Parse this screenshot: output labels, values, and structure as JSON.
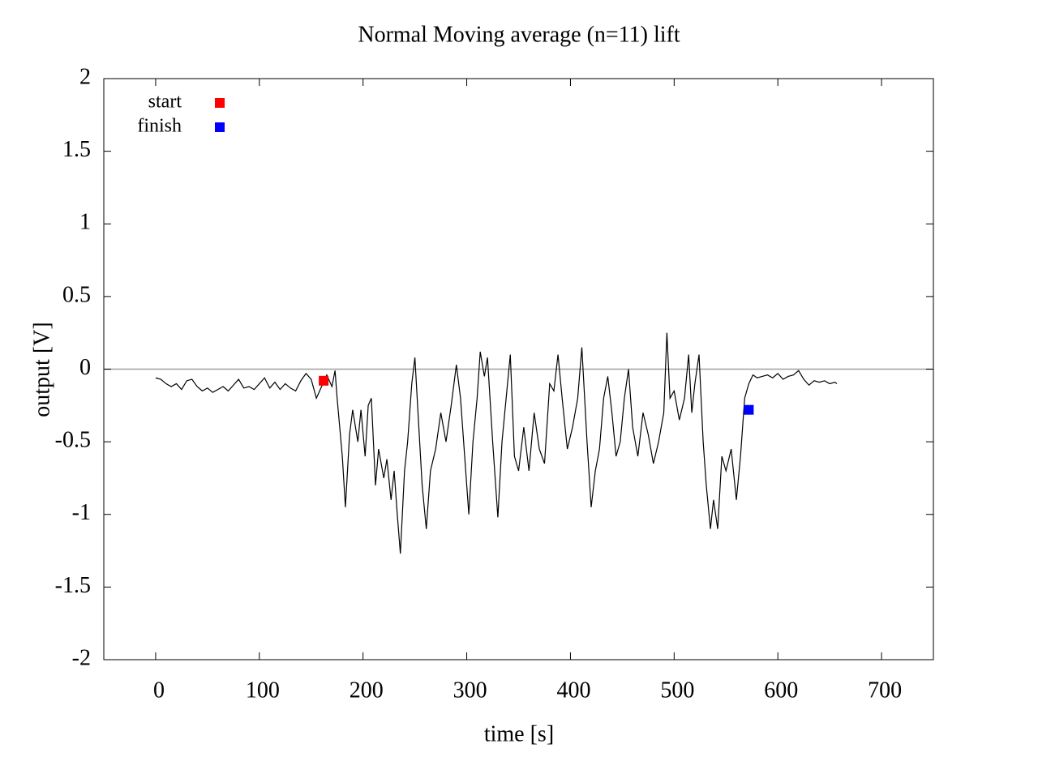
{
  "chart_data": {
    "type": "line",
    "title": "Normal  Moving average (n=11) lift",
    "x_label": "time [s]",
    "y_label": "output [V]",
    "xlim": [
      -50,
      750
    ],
    "ylim": [
      -2,
      2
    ],
    "xticks": [
      0,
      100,
      200,
      300,
      400,
      500,
      600,
      700
    ],
    "yticks": [
      -2,
      -1.5,
      -1,
      -0.5,
      0,
      0.5,
      1,
      1.5,
      2
    ],
    "zeroaxis": true,
    "series": [
      {
        "color": "#000000",
        "x": [
          0,
          5,
          10,
          15,
          20,
          25,
          30,
          35,
          40,
          45,
          50,
          55,
          60,
          65,
          70,
          75,
          80,
          85,
          90,
          95,
          100,
          105,
          110,
          115,
          120,
          125,
          130,
          135,
          140,
          145,
          150,
          155,
          160,
          165,
          170,
          173,
          175,
          180,
          183,
          187,
          190,
          195,
          198,
          202,
          205,
          208,
          212,
          215,
          220,
          223,
          227,
          230,
          233,
          236,
          240,
          243,
          247,
          250,
          253,
          257,
          261,
          265,
          270,
          275,
          280,
          285,
          290,
          294,
          298,
          302,
          306,
          310,
          313,
          317,
          320,
          325,
          330,
          334,
          338,
          342,
          346,
          350,
          355,
          360,
          365,
          370,
          375,
          380,
          384,
          388,
          392,
          397,
          402,
          407,
          411,
          416,
          420,
          424,
          428,
          432,
          436,
          440,
          444,
          448,
          452,
          456,
          460,
          465,
          470,
          475,
          480,
          485,
          490,
          493,
          496,
          500,
          505,
          510,
          514,
          517,
          520,
          524,
          528,
          531,
          535,
          538,
          542,
          546,
          550,
          555,
          560,
          564,
          568,
          572,
          576,
          580,
          585,
          590,
          595,
          600,
          605,
          610,
          615,
          620,
          625,
          630,
          635,
          640,
          645,
          650,
          655,
          657
        ],
        "values": [
          -0.06,
          -0.07,
          -0.1,
          -0.12,
          -0.1,
          -0.14,
          -0.08,
          -0.07,
          -0.12,
          -0.15,
          -0.13,
          -0.16,
          -0.14,
          -0.12,
          -0.15,
          -0.11,
          -0.07,
          -0.13,
          -0.12,
          -0.14,
          -0.1,
          -0.06,
          -0.13,
          -0.09,
          -0.14,
          -0.1,
          -0.13,
          -0.15,
          -0.08,
          -0.03,
          -0.07,
          -0.2,
          -0.12,
          -0.04,
          -0.12,
          -0.01,
          -0.2,
          -0.6,
          -0.95,
          -0.45,
          -0.28,
          -0.5,
          -0.28,
          -0.6,
          -0.25,
          -0.2,
          -0.8,
          -0.55,
          -0.75,
          -0.62,
          -0.9,
          -0.7,
          -1.0,
          -1.27,
          -0.7,
          -0.5,
          -0.1,
          0.08,
          -0.3,
          -0.8,
          -1.1,
          -0.7,
          -0.55,
          -0.3,
          -0.5,
          -0.25,
          0.03,
          -0.2,
          -0.6,
          -1.0,
          -0.5,
          -0.2,
          0.12,
          -0.05,
          0.08,
          -0.5,
          -1.02,
          -0.5,
          -0.2,
          0.1,
          -0.6,
          -0.7,
          -0.4,
          -0.7,
          -0.3,
          -0.55,
          -0.65,
          -0.1,
          -0.15,
          0.1,
          -0.2,
          -0.55,
          -0.4,
          -0.2,
          0.15,
          -0.5,
          -0.95,
          -0.7,
          -0.55,
          -0.2,
          -0.05,
          -0.3,
          -0.6,
          -0.5,
          -0.2,
          0.0,
          -0.4,
          -0.6,
          -0.3,
          -0.45,
          -0.65,
          -0.5,
          -0.3,
          0.25,
          -0.2,
          -0.15,
          -0.35,
          -0.2,
          0.1,
          -0.3,
          -0.1,
          0.1,
          -0.5,
          -0.8,
          -1.1,
          -0.9,
          -1.1,
          -0.6,
          -0.7,
          -0.55,
          -0.9,
          -0.6,
          -0.2,
          -0.1,
          -0.04,
          -0.06,
          -0.05,
          -0.04,
          -0.06,
          -0.03,
          -0.07,
          -0.05,
          -0.04,
          -0.01,
          -0.07,
          -0.11,
          -0.08,
          -0.09,
          -0.08,
          -0.1,
          -0.09,
          -0.1
        ]
      },
      {
        "name": "start",
        "color": "#ff0000",
        "marker": "square",
        "x": [
          162
        ],
        "values": [
          -0.08
        ]
      },
      {
        "name": "finish",
        "color": "#0000ff",
        "marker": "square",
        "x": [
          572
        ],
        "values": [
          -0.28
        ]
      }
    ]
  }
}
